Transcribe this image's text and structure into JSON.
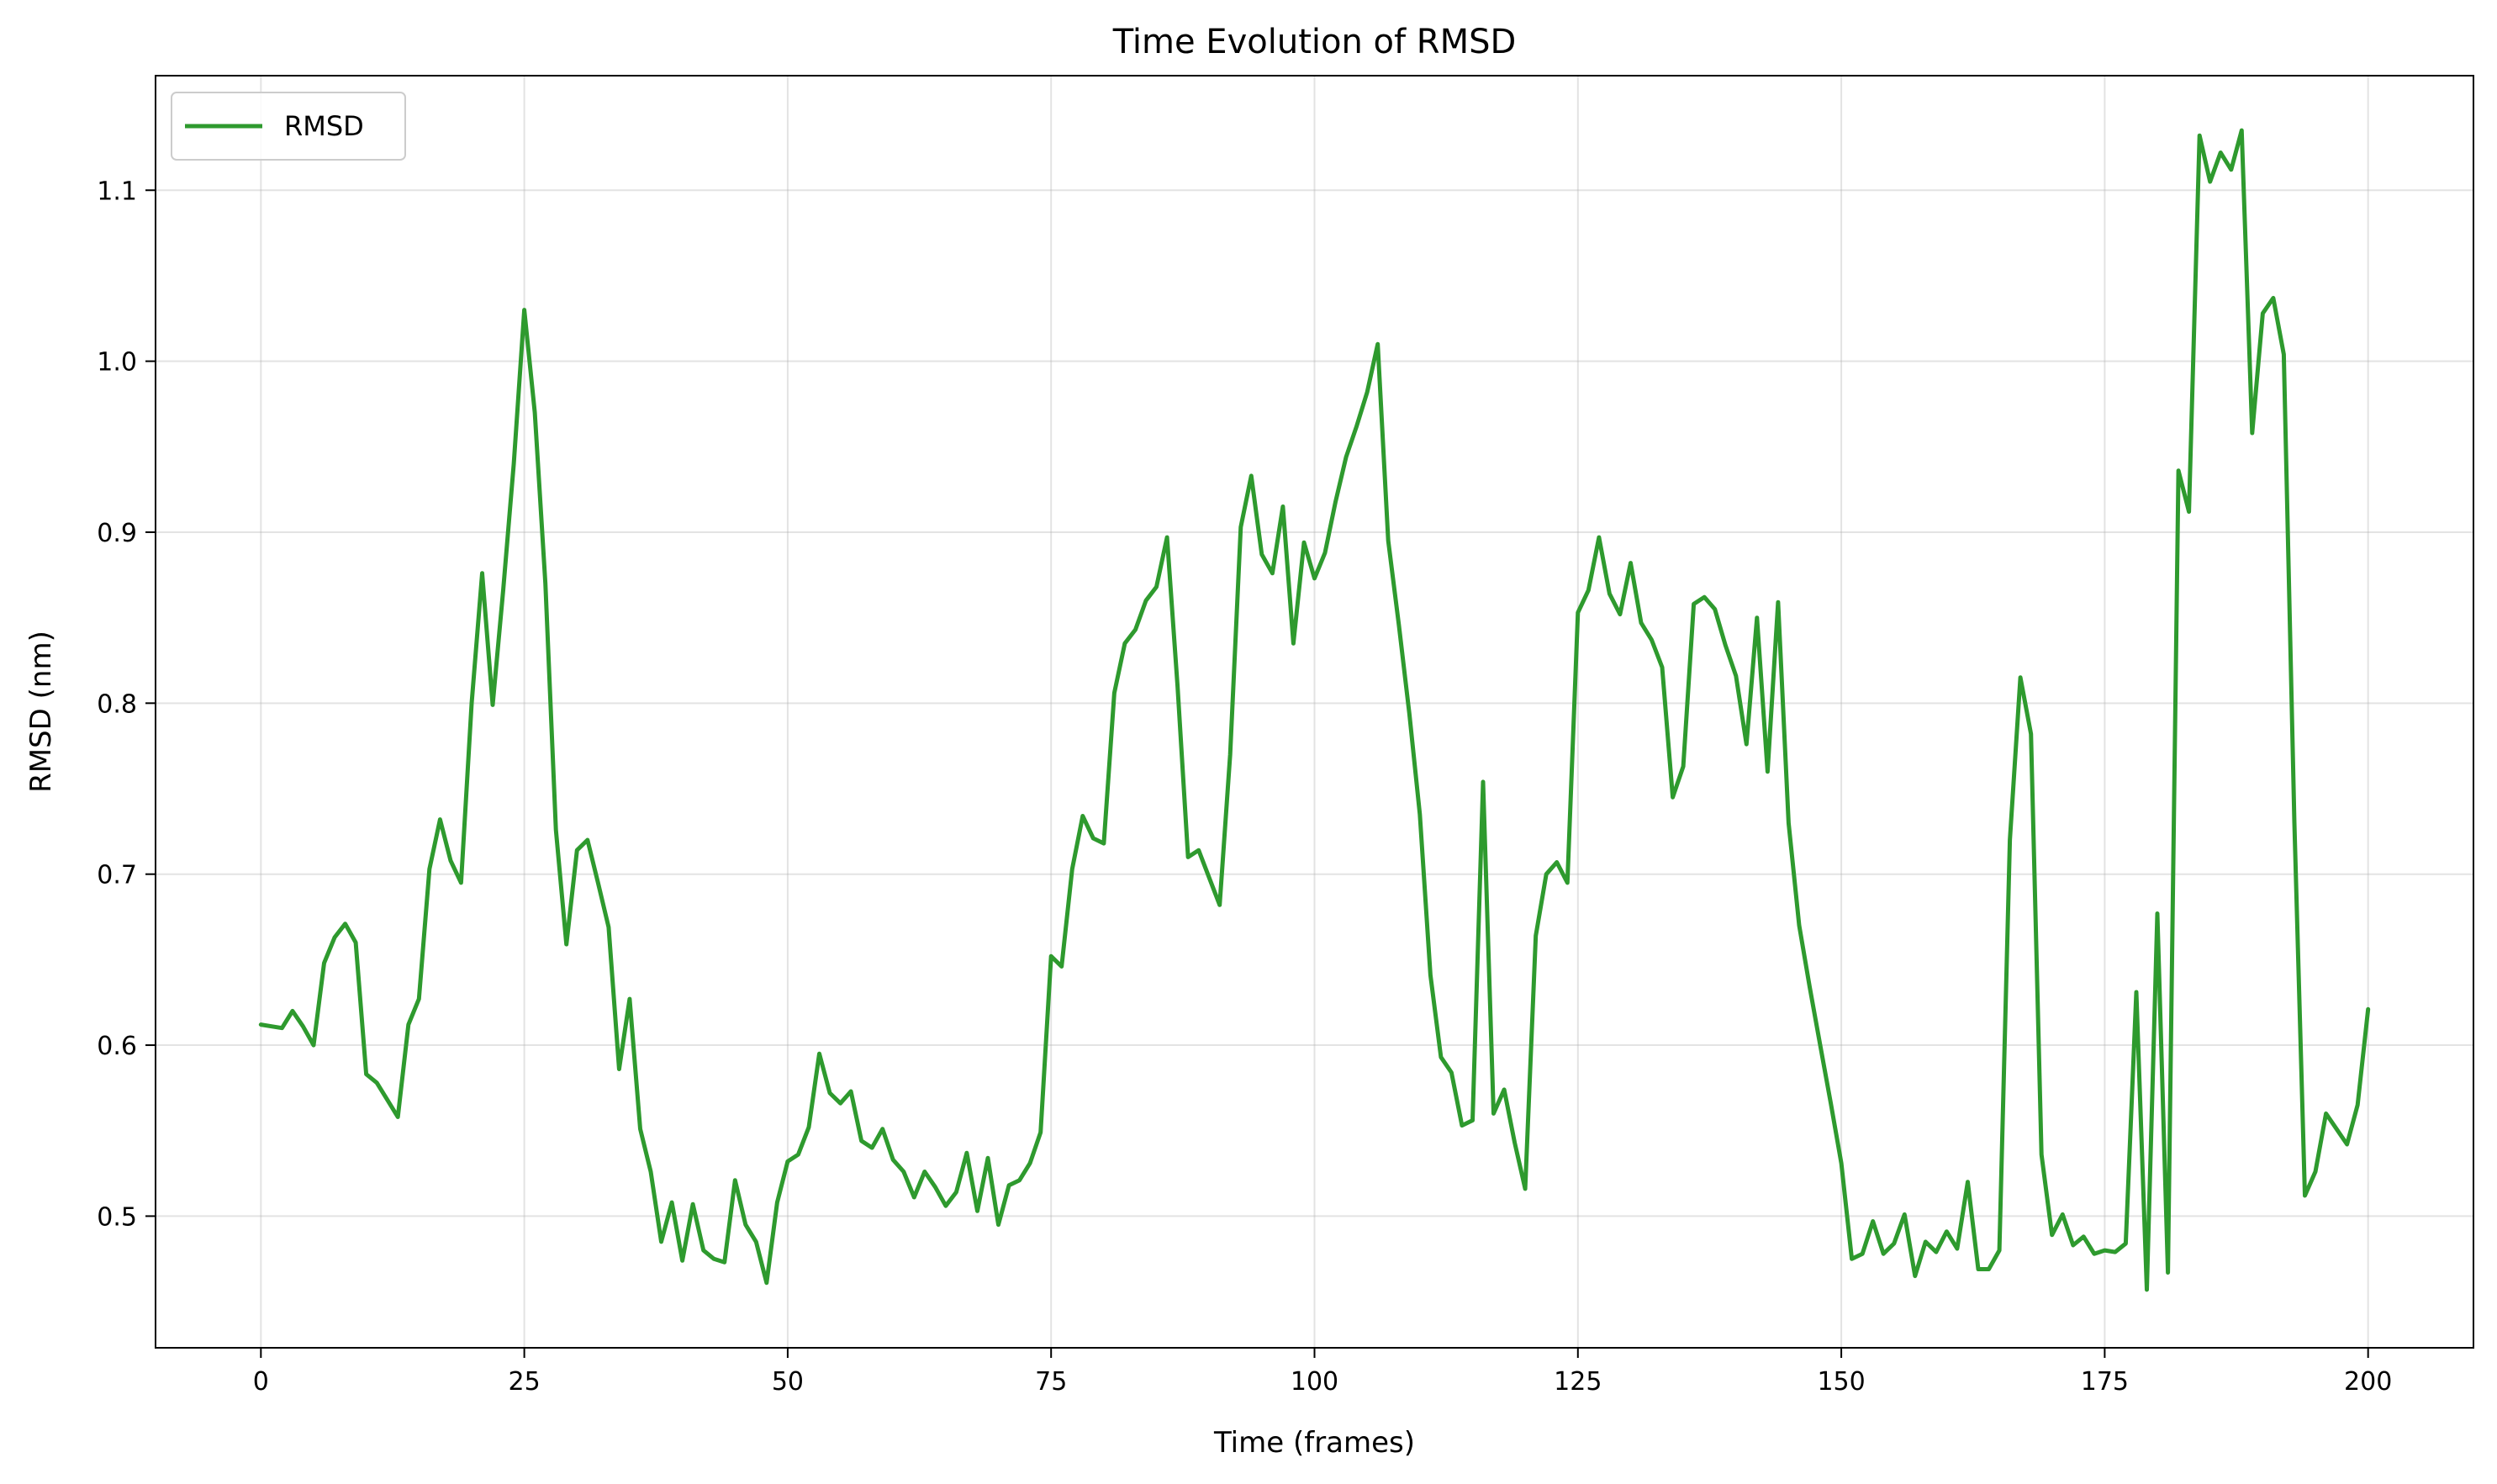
{
  "chart_data": {
    "type": "line",
    "title": "Time Evolution of RMSD",
    "xlabel": "Time (frames)",
    "ylabel": "RMSD (nm)",
    "xlim": [
      -10,
      210
    ],
    "ylim": [
      0.423,
      1.167
    ],
    "xticks": [
      0,
      25,
      50,
      75,
      100,
      125,
      150,
      175,
      200
    ],
    "yticks": [
      0.5,
      0.6,
      0.7,
      0.8,
      0.9,
      1.0,
      1.1
    ],
    "ytick_labels": [
      "0.5",
      "0.6",
      "0.7",
      "0.8",
      "0.9",
      "1.0",
      "1.1"
    ],
    "grid": true,
    "legend_position": "top-left",
    "series": [
      {
        "name": "RMSD",
        "color": "#2e9a2e",
        "x": [
          0,
          1,
          2,
          3,
          4,
          5,
          6,
          7,
          8,
          9,
          10,
          11,
          12,
          13,
          14,
          15,
          16,
          17,
          18,
          19,
          20,
          21,
          22,
          23,
          24,
          25,
          26,
          27,
          28,
          29,
          30,
          31,
          32,
          33,
          34,
          35,
          36,
          37,
          38,
          39,
          40,
          41,
          42,
          43,
          44,
          45,
          46,
          47,
          48,
          49,
          50,
          51,
          52,
          53,
          54,
          55,
          56,
          57,
          58,
          59,
          60,
          61,
          62,
          63,
          64,
          65,
          66,
          67,
          68,
          69,
          70,
          71,
          72,
          73,
          74,
          75,
          76,
          77,
          78,
          79,
          80,
          81,
          82,
          83,
          84,
          85,
          86,
          87,
          88,
          89,
          90,
          91,
          92,
          93,
          94,
          95,
          96,
          97,
          98,
          99,
          100,
          101,
          102,
          103,
          104,
          105,
          106,
          107,
          108,
          109,
          110,
          111,
          112,
          113,
          114,
          115,
          116,
          117,
          118,
          119,
          120,
          121,
          122,
          123,
          124,
          125,
          126,
          127,
          128,
          129,
          130,
          131,
          132,
          133,
          134,
          135,
          136,
          137,
          138,
          139,
          140,
          141,
          142,
          143,
          144,
          145,
          146,
          147,
          148,
          149,
          150,
          151,
          152,
          153,
          154,
          155,
          156,
          157,
          158,
          159,
          160,
          161,
          162,
          163,
          164,
          165,
          166,
          167,
          168,
          169,
          170,
          171,
          172,
          173,
          174,
          175,
          176,
          177,
          178,
          179,
          180,
          181,
          182,
          183,
          184,
          185,
          186,
          187,
          188,
          189,
          190,
          191,
          192,
          193,
          194,
          195,
          196,
          197,
          198,
          199,
          200
        ],
        "y": [
          0.612,
          0.611,
          0.61,
          0.62,
          0.611,
          0.6,
          0.648,
          0.663,
          0.671,
          0.66,
          0.583,
          0.578,
          0.568,
          0.558,
          0.612,
          0.627,
          0.703,
          0.732,
          0.708,
          0.695,
          0.8,
          0.876,
          0.799,
          0.866,
          0.94,
          1.03,
          0.97,
          0.87,
          0.726,
          0.659,
          0.714,
          0.72,
          0.695,
          0.669,
          0.586,
          0.627,
          0.551,
          0.526,
          0.485,
          0.508,
          0.474,
          0.507,
          0.48,
          0.475,
          0.473,
          0.521,
          0.495,
          0.485,
          0.461,
          0.508,
          0.532,
          0.536,
          0.552,
          0.595,
          0.572,
          0.566,
          0.573,
          0.544,
          0.54,
          0.551,
          0.533,
          0.526,
          0.511,
          0.526,
          0.517,
          0.506,
          0.514,
          0.537,
          0.503,
          0.534,
          0.495,
          0.518,
          0.521,
          0.531,
          0.549,
          0.652,
          0.646,
          0.703,
          0.734,
          0.721,
          0.718,
          0.806,
          0.835,
          0.843,
          0.86,
          0.868,
          0.897,
          0.81,
          0.71,
          0.714,
          0.698,
          0.682,
          0.77,
          0.903,
          0.933,
          0.887,
          0.876,
          0.915,
          0.835,
          0.894,
          0.873,
          0.888,
          0.918,
          0.944,
          0.962,
          0.982,
          1.01,
          0.895,
          0.846,
          0.794,
          0.735,
          0.641,
          0.593,
          0.584,
          0.553,
          0.556,
          0.754,
          0.56,
          0.574,
          0.543,
          0.516,
          0.664,
          0.7,
          0.707,
          0.695,
          0.853,
          0.866,
          0.897,
          0.864,
          0.852,
          0.882,
          0.847,
          0.837,
          0.821,
          0.745,
          0.763,
          0.858,
          0.862,
          0.855,
          0.834,
          0.816,
          0.776,
          0.85,
          0.76,
          0.859,
          0.73,
          0.67,
          0.634,
          0.6,
          0.566,
          0.531,
          0.475,
          0.478,
          0.497,
          0.478,
          0.484,
          0.501,
          0.465,
          0.485,
          0.479,
          0.491,
          0.481,
          0.52,
          0.469,
          0.469,
          0.48,
          0.72,
          0.815,
          0.782,
          0.536,
          0.489,
          0.501,
          0.483,
          0.488,
          0.478,
          0.48,
          0.479,
          0.484,
          0.631,
          0.457,
          0.677,
          0.467,
          0.936,
          0.912,
          1.132,
          1.105,
          1.122,
          1.112,
          1.135,
          0.958,
          1.028,
          1.037,
          1.004,
          0.73,
          0.512,
          0.526,
          0.56,
          0.551,
          0.542,
          0.565,
          0.621
        ]
      }
    ]
  }
}
